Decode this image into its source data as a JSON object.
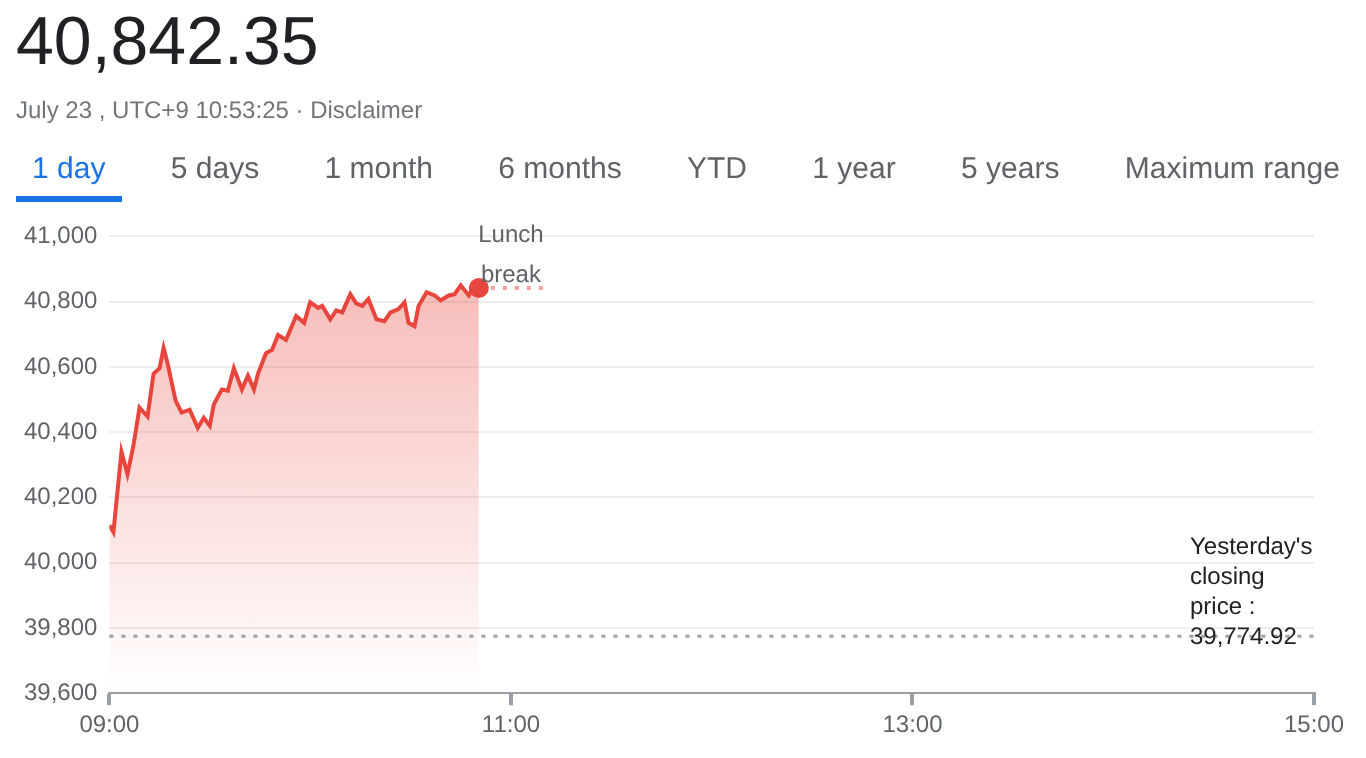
{
  "chart_data": {
    "type": "area",
    "title": "40,842.35",
    "subtitle": "July 23 , UTC+9 10:53:25 · Disclaimer",
    "annotations": [
      "1 day",
      "5 days",
      "1 month",
      "6 months",
      "YTD",
      "1 year",
      "5 years",
      "Maximum range",
      {
        "text": "Lunch break",
        "x": 11.0,
        "y": 40842
      }
    ],
    "x": [
      9.0,
      9.02,
      9.06,
      9.09,
      9.12,
      9.15,
      9.19,
      9.22,
      9.25,
      9.27,
      9.29,
      9.33,
      9.36,
      9.4,
      9.44,
      9.47,
      9.5,
      9.52,
      9.56,
      9.59,
      9.62,
      9.66,
      9.69,
      9.72,
      9.74,
      9.78,
      9.81,
      9.84,
      9.88,
      9.93,
      9.97,
      10.0,
      10.04,
      10.06,
      10.1,
      10.13,
      10.16,
      10.2,
      10.23,
      10.26,
      10.29,
      10.33,
      10.37,
      10.4,
      10.44,
      10.47,
      10.49,
      10.52,
      10.54,
      10.58,
      10.62,
      10.65,
      10.69,
      10.72,
      10.75,
      10.79,
      10.81,
      10.84
    ],
    "series": [
      {
        "color": "#e8453c",
        "values": [
          40115,
          40094,
          40340,
          40271,
          40360,
          40475,
          40448,
          40579,
          40596,
          40658,
          40610,
          40496,
          40460,
          40469,
          40413,
          40444,
          40419,
          40485,
          40531,
          40527,
          40596,
          40531,
          40573,
          40531,
          40579,
          40642,
          40652,
          40698,
          40683,
          40756,
          40735,
          40798,
          40781,
          40787,
          40746,
          40773,
          40767,
          40823,
          40794,
          40787,
          40808,
          40746,
          40740,
          40767,
          40777,
          40798,
          40735,
          40725,
          40787,
          40829,
          40819,
          40804,
          40819,
          40823,
          40850,
          40819,
          40840,
          40842
        ]
      },
      {
        "type": "line",
        "line_style": "dotted",
        "color": "#f4a29c",
        "x": [
          10.84,
          11.16
        ],
        "values": [
          40842,
          40842
        ]
      }
    ],
    "xlim": [
      9,
      15
    ],
    "xticks": [
      {
        "value": 9,
        "label": "09:00"
      },
      {
        "value": 11,
        "label": "11:00"
      },
      {
        "value": 13,
        "label": "13:00"
      },
      {
        "value": 15,
        "label": "15:00"
      }
    ],
    "ylim": [
      39600,
      41000
    ],
    "yticks": [
      {
        "value": 39600,
        "label": "39,600"
      },
      {
        "value": 39800,
        "label": "39,800"
      },
      {
        "value": 40000,
        "label": "40,000"
      },
      {
        "value": 40200,
        "label": "40,200"
      },
      {
        "value": 40400,
        "label": "40,400"
      },
      {
        "value": 40600,
        "label": "40,600"
      },
      {
        "value": 40800,
        "label": "40,800"
      },
      {
        "value": 41000,
        "label": "41,000"
      }
    ],
    "grid": "y",
    "ref_lines": [
      {
        "axis": "y",
        "value": 39774.92,
        "label": "Yesterday's closing price : 39,774.92",
        "color": "#9aa0a6",
        "line_style": "dotted"
      }
    ]
  }
}
